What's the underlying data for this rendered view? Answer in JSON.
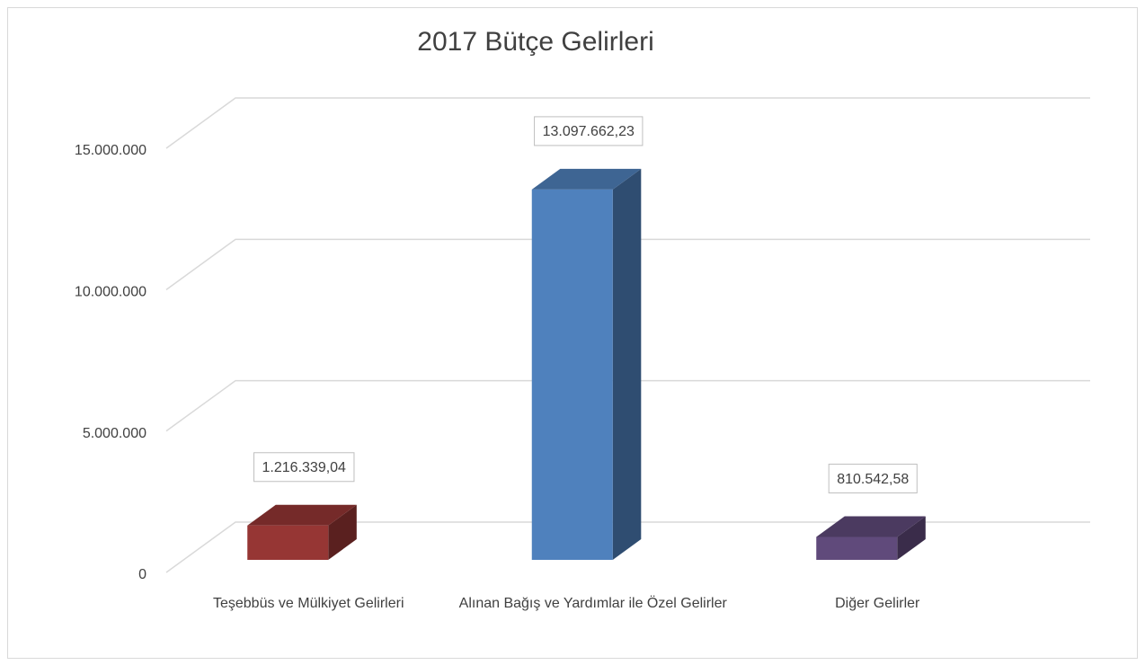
{
  "chart_data": {
    "type": "bar3d",
    "title": "2017 Bütçe Gelirleri",
    "categories": [
      "Teşebbüs ve Mülkiyet Gelirleri",
      "Alınan Bağış ve Yardımlar ile Özel Gelirler",
      "Diğer Gelirler"
    ],
    "values": [
      1216339.04,
      13097662.23,
      810542.58
    ],
    "value_labels": [
      "1.216.339,04",
      "13.097.662,23",
      "810.542,58"
    ],
    "colors": [
      "#963634",
      "#4f81bd",
      "#604a7b"
    ],
    "ylim": [
      0,
      15000000
    ],
    "yticks": [
      0,
      {
        "value": 5000000,
        "label": "5.000.000"
      },
      {
        "value": 10000000,
        "label": "10.000.000"
      },
      {
        "value": 15000000,
        "label": "15.000.000"
      }
    ],
    "grid": true
  }
}
